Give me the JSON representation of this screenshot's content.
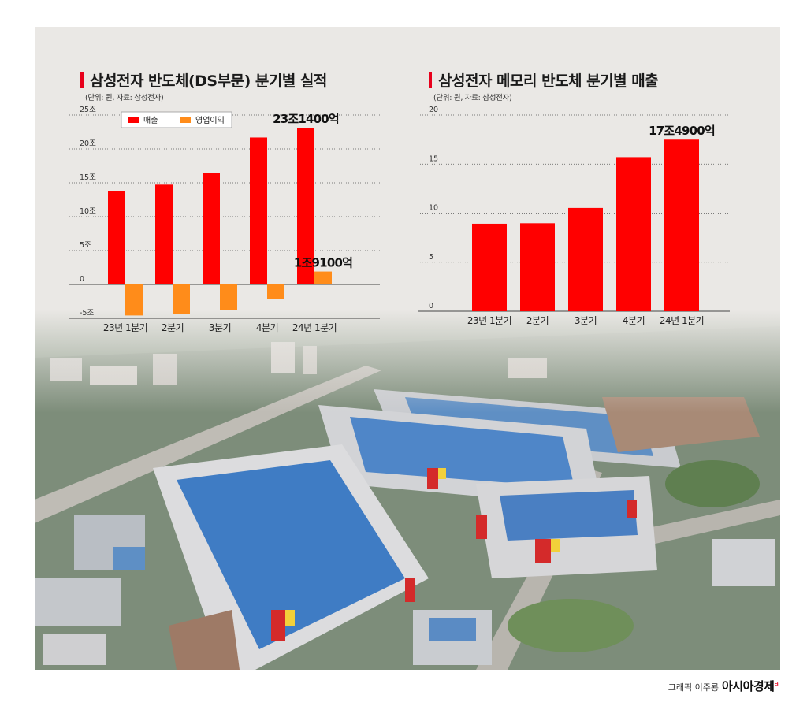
{
  "chart_data": [
    {
      "type": "bar",
      "title": "삼성전자 반도체(DS부문) 분기별 실적",
      "subtitle": "(단위: 원, 자료: 삼성전자)",
      "categories": [
        "23년 1분기",
        "2분기",
        "3분기",
        "4분기",
        "24년 1분기"
      ],
      "series": [
        {
          "name": "매출",
          "color": "#ff0000",
          "values": [
            13.73,
            14.73,
            16.44,
            21.69,
            23.14
          ]
        },
        {
          "name": "영업이익",
          "color": "#ff8c1a",
          "values": [
            -4.58,
            -4.36,
            -3.75,
            -2.18,
            1.91
          ]
        }
      ],
      "ylim": [
        -5,
        25
      ],
      "yticks": [
        25,
        20,
        15,
        10,
        5,
        0,
        -5
      ],
      "ytick_labels": [
        "25조",
        "20조",
        "15조",
        "10조",
        "5조",
        "0",
        "-5조"
      ],
      "annotations": [
        {
          "text": "23조1400억",
          "series": 0,
          "index": 4
        },
        {
          "text": "1조9100억",
          "series": 1,
          "index": 4
        }
      ],
      "legend": "top-left",
      "grid": true
    },
    {
      "type": "bar",
      "title": "삼성전자 메모리 반도체 분기별 매출",
      "subtitle": "(단위: 원, 자료: 삼성전자)",
      "categories": [
        "23년 1분기",
        "2분기",
        "3분기",
        "4분기",
        "24년 1분기"
      ],
      "series": [
        {
          "color": "#ff0000",
          "values": [
            8.92,
            8.97,
            10.53,
            15.71,
            17.49
          ]
        }
      ],
      "ylim": [
        0,
        20
      ],
      "yticks": [
        20,
        15,
        10,
        5,
        0
      ],
      "ytick_labels": [
        "20",
        "15",
        "10",
        "5",
        "0"
      ],
      "annotations": [
        {
          "text": "17조4900억",
          "series": 0,
          "index": 4
        }
      ],
      "grid": true
    }
  ],
  "credit": {
    "prefix": "그래픽 이주룡",
    "brand": "아시아경제",
    "mark": "a"
  }
}
